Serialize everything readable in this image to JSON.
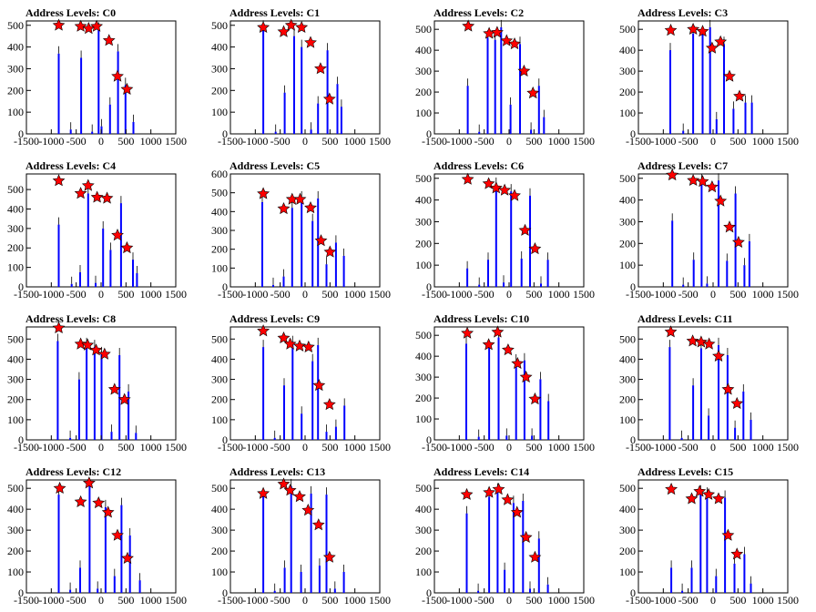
{
  "figure": {
    "layout": "4x4 grid of histogram panels",
    "colors": {
      "histogram": "#0000ff",
      "marker_fill": "#ff0000",
      "marker_edge": "#000000",
      "axis": "#000000",
      "background": "#ffffff"
    },
    "marker_shape": "star"
  },
  "chart_data": [
    {
      "type": "bar",
      "title": "Address Levels: C0",
      "xlim": [
        -1500,
        1500
      ],
      "xticks": [
        -1500,
        -1000,
        -500,
        0,
        500,
        1000,
        1500
      ],
      "ylim": [
        0,
        520
      ],
      "yticks": [
        0,
        100,
        200,
        300,
        400,
        500
      ],
      "histogram": {
        "x": [
          -850,
          -610,
          -400,
          -180,
          -50,
          10,
          180,
          340,
          490,
          650
        ],
        "values": [
          370,
          20,
          350,
          10,
          480,
          35,
          135,
          380,
          225,
          55
        ]
      },
      "markers": {
        "x": [
          -850,
          -410,
          -250,
          -90,
          160,
          330,
          520
        ],
        "y": [
          500,
          495,
          485,
          495,
          430,
          265,
          205
        ]
      }
    },
    {
      "type": "bar",
      "title": "Address Levels: C1",
      "xlim": [
        -1500,
        1500
      ],
      "xticks": [
        -1500,
        -1000,
        -500,
        0,
        500,
        1000,
        1500
      ],
      "ylim": [
        0,
        520
      ],
      "yticks": [
        0,
        100,
        200,
        300,
        400,
        500
      ],
      "histogram": {
        "x": [
          -840,
          -590,
          -410,
          -220,
          -70,
          120,
          260,
          450,
          650,
          730
        ],
        "values": [
          490,
          10,
          190,
          450,
          400,
          20,
          140,
          385,
          230,
          125
        ]
      },
      "markers": {
        "x": [
          -840,
          -430,
          -280,
          -70,
          110,
          310,
          490
        ],
        "y": [
          490,
          470,
          500,
          490,
          420,
          300,
          160
        ]
      }
    },
    {
      "type": "bar",
      "title": "Address Levels: C2",
      "xlim": [
        -1500,
        1500
      ],
      "xticks": [
        -1500,
        -1000,
        -500,
        0,
        500,
        1000,
        1500
      ],
      "ylim": [
        0,
        540
      ],
      "yticks": [
        0,
        100,
        200,
        300,
        400,
        500
      ],
      "histogram": {
        "x": [
          -830,
          -600,
          -430,
          -280,
          -160,
          30,
          220,
          440,
          600,
          700
        ],
        "values": [
          230,
          10,
          460,
          450,
          510,
          140,
          430,
          20,
          230,
          80
        ]
      },
      "markers": {
        "x": [
          -820,
          -400,
          -240,
          -50,
          110,
          300,
          480
        ],
        "y": [
          515,
          480,
          485,
          445,
          430,
          300,
          195
        ]
      }
    },
    {
      "type": "bar",
      "title": "Address Levels: C3",
      "xlim": [
        -1500,
        1500
      ],
      "xticks": [
        -1500,
        -1000,
        -500,
        0,
        500,
        1000,
        1500
      ],
      "ylim": [
        0,
        540
      ],
      "yticks": [
        0,
        100,
        200,
        300,
        400,
        500
      ],
      "histogram": {
        "x": [
          -860,
          -600,
          -400,
          -210,
          -60,
          70,
          220,
          410,
          650,
          780
        ],
        "values": [
          400,
          15,
          480,
          480,
          510,
          70,
          430,
          120,
          150,
          150
        ]
      },
      "markers": {
        "x": [
          -850,
          -400,
          -210,
          -20,
          150,
          330,
          530
        ],
        "y": [
          495,
          500,
          490,
          410,
          440,
          275,
          180
        ]
      }
    },
    {
      "type": "bar",
      "title": "Address Levels: C4",
      "xlim": [
        -1500,
        1500
      ],
      "xticks": [
        -1500,
        -1000,
        -500,
        0,
        500,
        1000,
        1500
      ],
      "ylim": [
        0,
        580
      ],
      "yticks": [
        0,
        100,
        200,
        300,
        400,
        500
      ],
      "histogram": {
        "x": [
          -850,
          -590,
          -420,
          -260,
          -110,
          40,
          190,
          400,
          640,
          720
        ],
        "values": [
          320,
          15,
          75,
          480,
          20,
          300,
          190,
          430,
          140,
          70
        ]
      },
      "markers": {
        "x": [
          -850,
          -410,
          -260,
          -80,
          120,
          330,
          520
        ],
        "y": [
          545,
          480,
          520,
          460,
          455,
          265,
          200
        ]
      }
    },
    {
      "type": "bar",
      "title": "Address Levels: C5",
      "xlim": [
        -1500,
        1500
      ],
      "xticks": [
        -1500,
        -1000,
        -500,
        0,
        500,
        1000,
        1500
      ],
      "ylim": [
        0,
        600
      ],
      "yticks": [
        0,
        100,
        200,
        300,
        400,
        500,
        600
      ],
      "histogram": {
        "x": [
          -860,
          -640,
          -430,
          -260,
          -70,
          150,
          260,
          430,
          620,
          780
        ],
        "values": [
          450,
          10,
          55,
          420,
          470,
          350,
          470,
          120,
          235,
          165
        ]
      },
      "markers": {
        "x": [
          -840,
          -430,
          -260,
          -100,
          110,
          320,
          500
        ],
        "y": [
          495,
          415,
          465,
          465,
          420,
          245,
          185
        ]
      }
    },
    {
      "type": "bar",
      "title": "Address Levels: C6",
      "xlim": [
        -1500,
        1500
      ],
      "xticks": [
        -1500,
        -1000,
        -500,
        0,
        500,
        1000,
        1500
      ],
      "ylim": [
        0,
        520
      ],
      "yticks": [
        0,
        100,
        200,
        300,
        400,
        500
      ],
      "histogram": {
        "x": [
          -840,
          -600,
          -420,
          -260,
          -110,
          40,
          250,
          420,
          640,
          780
        ],
        "values": [
          85,
          10,
          125,
          470,
          20,
          440,
          130,
          420,
          15,
          125
        ]
      },
      "markers": {
        "x": [
          -830,
          -410,
          -260,
          -90,
          110,
          320,
          520
        ],
        "y": [
          495,
          475,
          455,
          445,
          420,
          260,
          175
        ]
      }
    },
    {
      "type": "bar",
      "title": "Address Levels: C7",
      "xlim": [
        -1500,
        1500
      ],
      "xticks": [
        -1500,
        -1000,
        -500,
        0,
        500,
        1000,
        1500
      ],
      "ylim": [
        0,
        520
      ],
      "yticks": [
        0,
        100,
        200,
        300,
        400,
        500
      ],
      "histogram": {
        "x": [
          -820,
          -600,
          -390,
          -230,
          -120,
          110,
          280,
          450,
          630,
          730
        ],
        "values": [
          305,
          10,
          125,
          485,
          15,
          490,
          120,
          430,
          100,
          210
        ]
      },
      "markers": {
        "x": [
          -820,
          -400,
          -210,
          -20,
          150,
          330,
          510
        ],
        "y": [
          515,
          490,
          485,
          460,
          395,
          275,
          205
        ]
      }
    },
    {
      "type": "bar",
      "title": "Address Levels: C8",
      "xlim": [
        -1500,
        1500
      ],
      "xticks": [
        -1500,
        -1000,
        -500,
        0,
        500,
        1000,
        1500
      ],
      "ylim": [
        0,
        560
      ],
      "yticks": [
        0,
        100,
        200,
        300,
        400,
        500
      ],
      "histogram": {
        "x": [
          -870,
          -620,
          -440,
          -290,
          -130,
          10,
          210,
          370,
          550,
          700
        ],
        "values": [
          490,
          10,
          300,
          470,
          460,
          425,
          40,
          420,
          240,
          35
        ]
      },
      "markers": {
        "x": [
          -850,
          -410,
          -270,
          -100,
          70,
          270,
          470
        ],
        "y": [
          555,
          475,
          470,
          445,
          425,
          250,
          200
        ]
      }
    },
    {
      "type": "bar",
      "title": "Address Levels: C9",
      "xlim": [
        -1500,
        1500
      ],
      "xticks": [
        -1500,
        -1000,
        -500,
        0,
        500,
        1000,
        1500
      ],
      "ylim": [
        0,
        560
      ],
      "yticks": [
        0,
        100,
        200,
        300,
        400,
        500
      ],
      "histogram": {
        "x": [
          -840,
          -610,
          -420,
          -250,
          -70,
          150,
          260,
          430,
          620,
          790
        ],
        "values": [
          460,
          10,
          270,
          480,
          130,
          390,
          470,
          40,
          65,
          170
        ]
      },
      "markers": {
        "x": [
          -840,
          -430,
          -300,
          -110,
          70,
          280,
          490
        ],
        "y": [
          540,
          505,
          475,
          465,
          460,
          270,
          175
        ]
      }
    },
    {
      "type": "bar",
      "title": "Address Levels: C10",
      "xlim": [
        -1500,
        1500
      ],
      "xticks": [
        -1500,
        -1000,
        -500,
        0,
        500,
        1000,
        1500
      ],
      "ylim": [
        0,
        540
      ],
      "yticks": [
        0,
        100,
        200,
        300,
        400,
        500
      ],
      "histogram": {
        "x": [
          -860,
          -610,
          -400,
          -210,
          -50,
          140,
          310,
          460,
          630,
          790
        ],
        "values": [
          460,
          15,
          440,
          490,
          20,
          375,
          380,
          20,
          290,
          185
        ]
      },
      "markers": {
        "x": [
          -840,
          -410,
          -230,
          -20,
          170,
          340,
          520
        ],
        "y": [
          510,
          455,
          515,
          430,
          365,
          300,
          195
        ]
      }
    },
    {
      "type": "bar",
      "title": "Address Levels: C11",
      "xlim": [
        -1500,
        1500
      ],
      "xticks": [
        -1500,
        -1000,
        -500,
        0,
        500,
        1000,
        1500
      ],
      "ylim": [
        0,
        560
      ],
      "yticks": [
        0,
        100,
        200,
        300,
        400,
        500
      ],
      "histogram": {
        "x": [
          -870,
          -630,
          -400,
          -240,
          -90,
          110,
          290,
          440,
          610,
          760
        ],
        "values": [
          460,
          10,
          270,
          455,
          120,
          470,
          420,
          60,
          240,
          100
        ]
      },
      "markers": {
        "x": [
          -850,
          -410,
          -240,
          -80,
          110,
          300,
          480
        ],
        "y": [
          535,
          490,
          485,
          475,
          415,
          250,
          180
        ]
      }
    },
    {
      "type": "bar",
      "title": "Address Levels: C12",
      "xlim": [
        -1500,
        1500
      ],
      "xticks": [
        -1500,
        -1000,
        -500,
        0,
        500,
        1000,
        1500
      ],
      "ylim": [
        0,
        540
      ],
      "yticks": [
        0,
        100,
        200,
        300,
        400,
        500
      ],
      "histogram": {
        "x": [
          -850,
          -620,
          -420,
          -230,
          -70,
          90,
          270,
          410,
          580,
          780
        ],
        "values": [
          470,
          15,
          120,
          510,
          20,
          410,
          80,
          420,
          275,
          60
        ]
      },
      "markers": {
        "x": [
          -830,
          -410,
          -240,
          -50,
          140,
          330,
          530
        ],
        "y": [
          500,
          435,
          525,
          430,
          385,
          275,
          165
        ]
      }
    },
    {
      "type": "bar",
      "title": "Address Levels: C13",
      "xlim": [
        -1500,
        1500
      ],
      "xticks": [
        -1500,
        -1000,
        -500,
        0,
        500,
        1000,
        1500
      ],
      "ylim": [
        0,
        540
      ],
      "yticks": [
        0,
        100,
        200,
        300,
        400,
        500
      ],
      "histogram": {
        "x": [
          -840,
          -610,
          -410,
          -280,
          -80,
          120,
          290,
          430,
          600,
          780
        ],
        "values": [
          460,
          10,
          120,
          510,
          100,
          475,
          130,
          470,
          20,
          100
        ]
      },
      "markers": {
        "x": [
          -840,
          -430,
          -300,
          -110,
          60,
          270,
          490
        ],
        "y": [
          475,
          520,
          490,
          460,
          395,
          325,
          170
        ]
      }
    },
    {
      "type": "bar",
      "title": "Address Levels: C14",
      "xlim": [
        -1500,
        1500
      ],
      "xticks": [
        -1500,
        -1000,
        -500,
        0,
        500,
        1000,
        1500
      ],
      "ylim": [
        0,
        540
      ],
      "yticks": [
        0,
        100,
        200,
        300,
        400,
        500
      ],
      "histogram": {
        "x": [
          -850,
          -620,
          -400,
          -230,
          -90,
          90,
          280,
          420,
          600,
          780
        ],
        "values": [
          380,
          10,
          460,
          490,
          110,
          430,
          440,
          20,
          260,
          40
        ]
      },
      "markers": {
        "x": [
          -850,
          -400,
          -210,
          -30,
          160,
          340,
          520
        ],
        "y": [
          470,
          480,
          495,
          445,
          385,
          265,
          170
        ]
      }
    },
    {
      "type": "bar",
      "title": "Address Levels: C15",
      "xlim": [
        -1500,
        1500
      ],
      "xticks": [
        -1500,
        -1000,
        -500,
        0,
        500,
        1000,
        1500
      ],
      "ylim": [
        0,
        540
      ],
      "yticks": [
        0,
        100,
        200,
        300,
        400,
        500
      ],
      "histogram": {
        "x": [
          -840,
          -620,
          -430,
          -250,
          -120,
          60,
          240,
          430,
          630,
          760
        ],
        "values": [
          120,
          10,
          120,
          480,
          470,
          80,
          455,
          140,
          185,
          45
        ]
      },
      "markers": {
        "x": [
          -840,
          -430,
          -270,
          -90,
          110,
          300,
          480
        ],
        "y": [
          495,
          450,
          485,
          470,
          450,
          275,
          185
        ]
      }
    }
  ]
}
